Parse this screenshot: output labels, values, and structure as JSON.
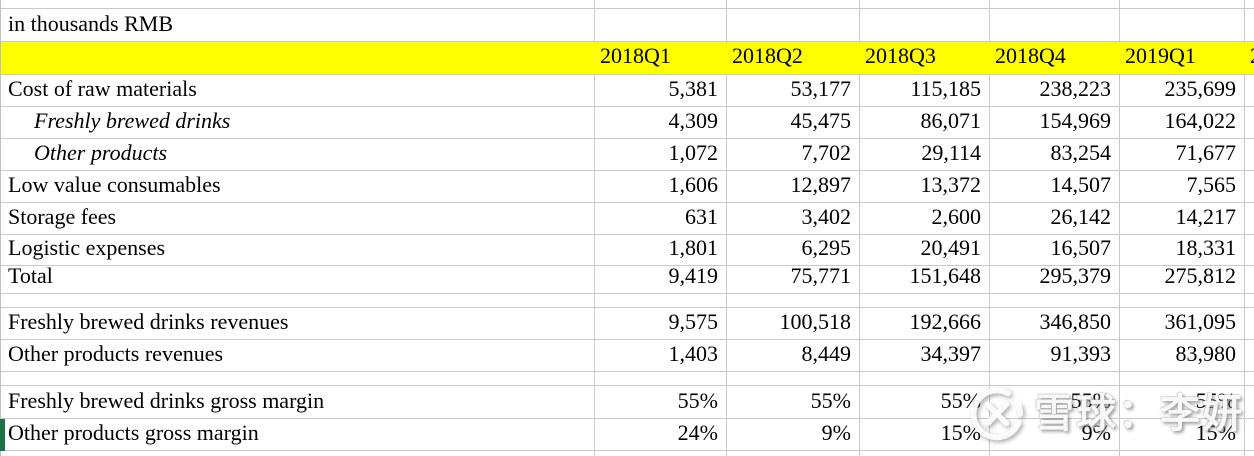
{
  "table": {
    "unit_label": "in thousands RMB",
    "columns": [
      "2018Q1",
      "2018Q2",
      "2018Q3",
      "2018Q4",
      "2019Q1"
    ],
    "clipped_next_column": "2",
    "rows": [
      {
        "type": "data",
        "label": "Cost of raw materials",
        "style": "normal",
        "values": [
          "5,381",
          "53,177",
          "115,185",
          "238,223",
          "235,699"
        ]
      },
      {
        "type": "data",
        "label": "Freshly brewed drinks",
        "style": "sub-italic",
        "values": [
          "4,309",
          "45,475",
          "86,071",
          "154,969",
          "164,022"
        ]
      },
      {
        "type": "data",
        "label": "Other products",
        "style": "sub-italic",
        "values": [
          "1,072",
          "7,702",
          "29,114",
          "83,254",
          "71,677"
        ]
      },
      {
        "type": "data",
        "label": "Low value consumables",
        "style": "normal",
        "values": [
          "1,606",
          "12,897",
          "13,372",
          "14,507",
          "7,565"
        ]
      },
      {
        "type": "data",
        "label": "Storage fees",
        "style": "normal",
        "values": [
          "631",
          "3,402",
          "2,600",
          "26,142",
          "14,217"
        ]
      },
      {
        "type": "data",
        "label": "Logistic expenses",
        "style": "normal",
        "values": [
          "1,801",
          "6,295",
          "20,491",
          "16,507",
          "18,331"
        ]
      },
      {
        "type": "data",
        "label": "Total",
        "style": "normal",
        "values": [
          "9,419",
          "75,771",
          "151,648",
          "295,379",
          "275,812"
        ]
      },
      {
        "type": "spacer"
      },
      {
        "type": "data",
        "label": "Freshly brewed drinks revenues",
        "style": "normal",
        "values": [
          "9,575",
          "100,518",
          "192,666",
          "346,850",
          "361,095"
        ]
      },
      {
        "type": "data",
        "label": "Other products revenues",
        "style": "normal",
        "values": [
          "1,403",
          "8,449",
          "34,397",
          "91,393",
          "83,980"
        ]
      },
      {
        "type": "spacer"
      },
      {
        "type": "data",
        "label": "Freshly brewed drinks gross margin",
        "style": "normal",
        "values": [
          "55%",
          "55%",
          "55%",
          "55%",
          "55%"
        ]
      },
      {
        "type": "data",
        "label": "Other products gross margin",
        "style": "normal",
        "selected": true,
        "values": [
          "24%",
          "9%",
          "15%",
          "9%",
          "15%"
        ]
      },
      {
        "type": "partial"
      }
    ]
  },
  "watermark": {
    "brand": "雪球",
    "separator": "：",
    "author": "李妍",
    "text": "雪球：李妍",
    "logo": "xueqiu-snowball-logo"
  },
  "colors": {
    "header_bg": "#ffff00",
    "grid_line": "#c9c9c9",
    "selection_green": "#1e7145",
    "text": "#000000",
    "watermark": "#ffffff"
  }
}
